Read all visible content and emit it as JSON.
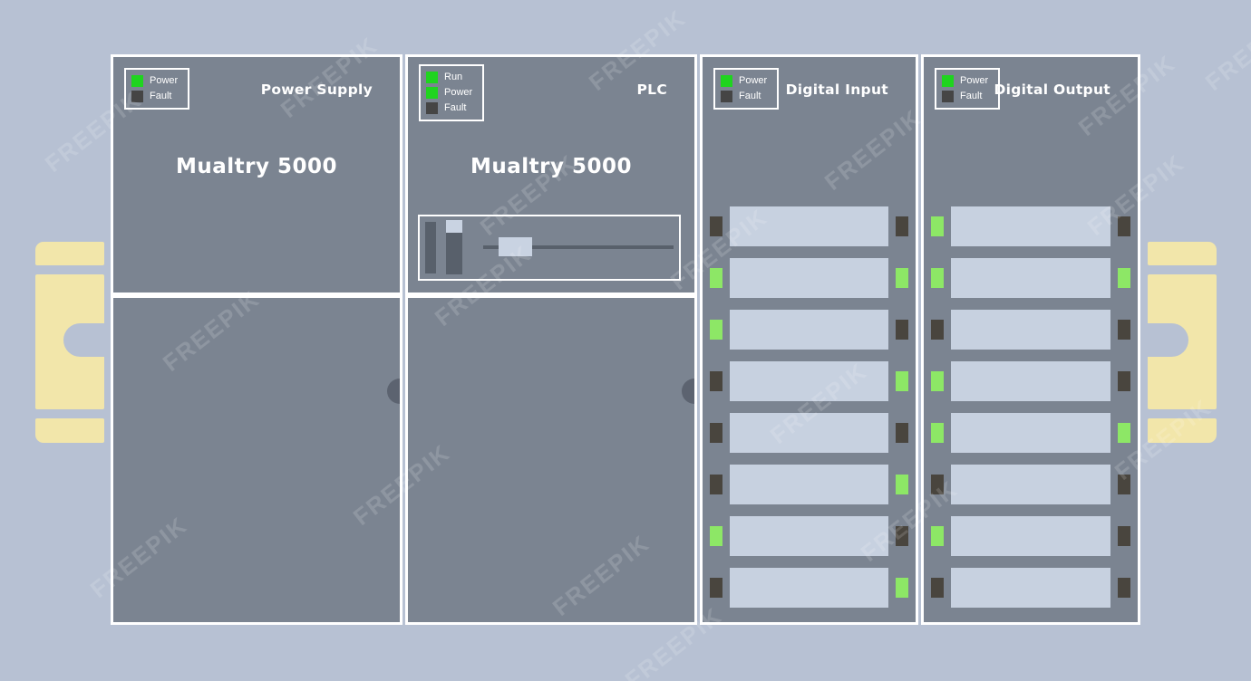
{
  "colors": {
    "bg": "#b7c1d3",
    "module_face": "#7b8491",
    "terminal": "#c7d1e0",
    "led_on": "#1fd41f",
    "led_off": "#454545",
    "chan_on": "#8de766",
    "chan_off": "#49453e",
    "bracket": "#f2e6aa",
    "knob": "#5c6370",
    "control_dark": "#58606b",
    "control_light": "#c9d3e2",
    "border": "#ffffff",
    "text": "#ffffff"
  },
  "watermark": {
    "text": "FREEPIK"
  },
  "modules": [
    {
      "id": "power-supply",
      "title": "Power Supply",
      "brand": "Mualtry 5000",
      "legend": [
        {
          "label": "Power",
          "state": "on"
        },
        {
          "label": "Fault",
          "state": "off"
        }
      ]
    },
    {
      "id": "plc",
      "title": "PLC",
      "brand": "Mualtry 5000",
      "legend": [
        {
          "label": "Run",
          "state": "on"
        },
        {
          "label": "Power",
          "state": "on"
        },
        {
          "label": "Fault",
          "state": "off"
        }
      ]
    },
    {
      "id": "digital-input",
      "title": "Digital Input",
      "legend": [
        {
          "label": "Power",
          "state": "on"
        },
        {
          "label": "Fault",
          "state": "off"
        }
      ],
      "channels": [
        {
          "left": "off",
          "right": "off"
        },
        {
          "left": "on",
          "right": "on"
        },
        {
          "left": "on",
          "right": "off"
        },
        {
          "left": "off",
          "right": "on"
        },
        {
          "left": "off",
          "right": "off"
        },
        {
          "left": "off",
          "right": "on"
        },
        {
          "left": "on",
          "right": "off"
        },
        {
          "left": "off",
          "right": "on"
        }
      ]
    },
    {
      "id": "digital-output",
      "title": "Digital Output",
      "legend": [
        {
          "label": "Power",
          "state": "on"
        },
        {
          "label": "Fault",
          "state": "off"
        }
      ],
      "channels": [
        {
          "left": "on",
          "right": "off"
        },
        {
          "left": "on",
          "right": "on"
        },
        {
          "left": "off",
          "right": "off"
        },
        {
          "left": "on",
          "right": "off"
        },
        {
          "left": "on",
          "right": "on"
        },
        {
          "left": "off",
          "right": "off"
        },
        {
          "left": "on",
          "right": "off"
        },
        {
          "left": "off",
          "right": "off"
        }
      ]
    }
  ]
}
